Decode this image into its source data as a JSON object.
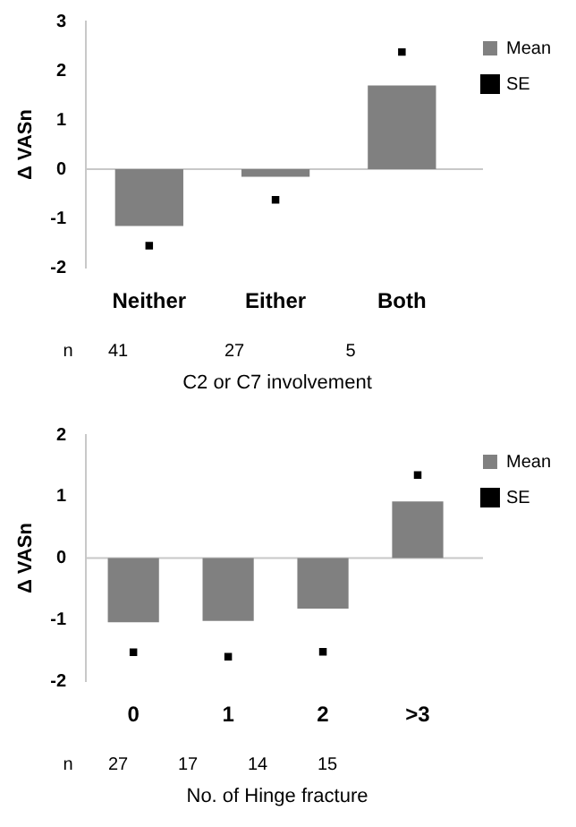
{
  "chart_data": [
    {
      "type": "bar",
      "ylabel": "Δ VASn",
      "xlabel": "C2 or C7 involvement",
      "categories": [
        "Neither",
        "Either",
        "Both"
      ],
      "series": [
        {
          "name": "Mean",
          "color": "#808080",
          "values": [
            -1.15,
            -0.15,
            1.7
          ]
        },
        {
          "name": "SE",
          "type": "scatter",
          "marker": "square",
          "color": "#000000",
          "x": [
            "Neither",
            "Either",
            "Both"
          ],
          "values": [
            -1.55,
            -0.62,
            2.38
          ]
        }
      ],
      "ylim": [
        -2,
        3
      ],
      "yticks": [
        -2,
        -1,
        0,
        1,
        2,
        3
      ],
      "grid": false,
      "legend": "top right",
      "ref_lines": [
        {
          "axis": "y",
          "value": 0,
          "color": "#c8c8c8"
        }
      ],
      "annotations": [
        "n",
        "41",
        "27",
        "5"
      ]
    },
    {
      "type": "bar",
      "ylabel": "Δ VASn",
      "xlabel": "No. of Hinge fracture",
      "categories": [
        "0",
        "1",
        "2",
        ">3"
      ],
      "series": [
        {
          "name": "Mean",
          "color": "#808080",
          "values": [
            -1.04,
            -1.02,
            -0.82,
            0.92
          ]
        },
        {
          "name": "SE",
          "type": "scatter",
          "marker": "square",
          "color": "#000000",
          "x": [
            "0",
            "1",
            "2",
            ">3"
          ],
          "values": [
            -1.53,
            -1.6,
            -1.52,
            1.35
          ]
        }
      ],
      "ylim": [
        -2,
        2
      ],
      "yticks": [
        -2,
        -1,
        0,
        1,
        2
      ],
      "grid": false,
      "legend": "top right",
      "ref_lines": [
        {
          "axis": "y",
          "value": 0,
          "color": "#c8c8c8"
        }
      ],
      "annotations": [
        "n",
        "27",
        "17",
        "14",
        "15"
      ]
    }
  ]
}
